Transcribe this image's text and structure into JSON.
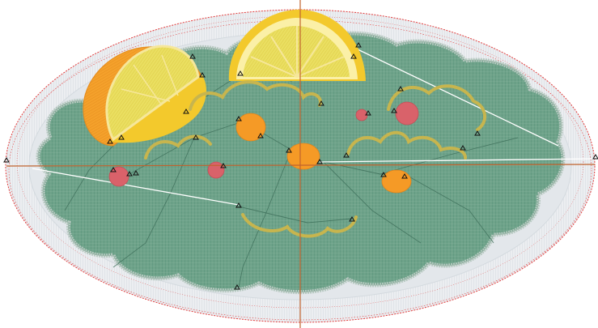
{
  "canvas": {
    "background": "#ffffff"
  },
  "colors": {
    "plate_outline": "#e23b3b",
    "plate_fill": "#e9ecef",
    "plate_stitch": "#cfd6dc",
    "greens_fill": "#6fa38a",
    "greens_stitch": "#4f8b73",
    "greens_edge": "#b7c9c1",
    "lemon_rind": "#f3c92c",
    "lemon_pith": "#fbf0a7",
    "lemon_flesh": "#eadf61",
    "orange_wedge": "#f4a12b",
    "orange_dot": "#f59a26",
    "berry_red": "#d9626a",
    "squiggle": "#c7b54e",
    "axis_line": "#c0632e",
    "stitch_path": "#3e6f5a",
    "jump_stitch": "#ffffff",
    "node_marker": "#111111"
  },
  "icons": {
    "stitch_node": "triangle-marker-icon",
    "center_cross": "crosshair-icon"
  }
}
